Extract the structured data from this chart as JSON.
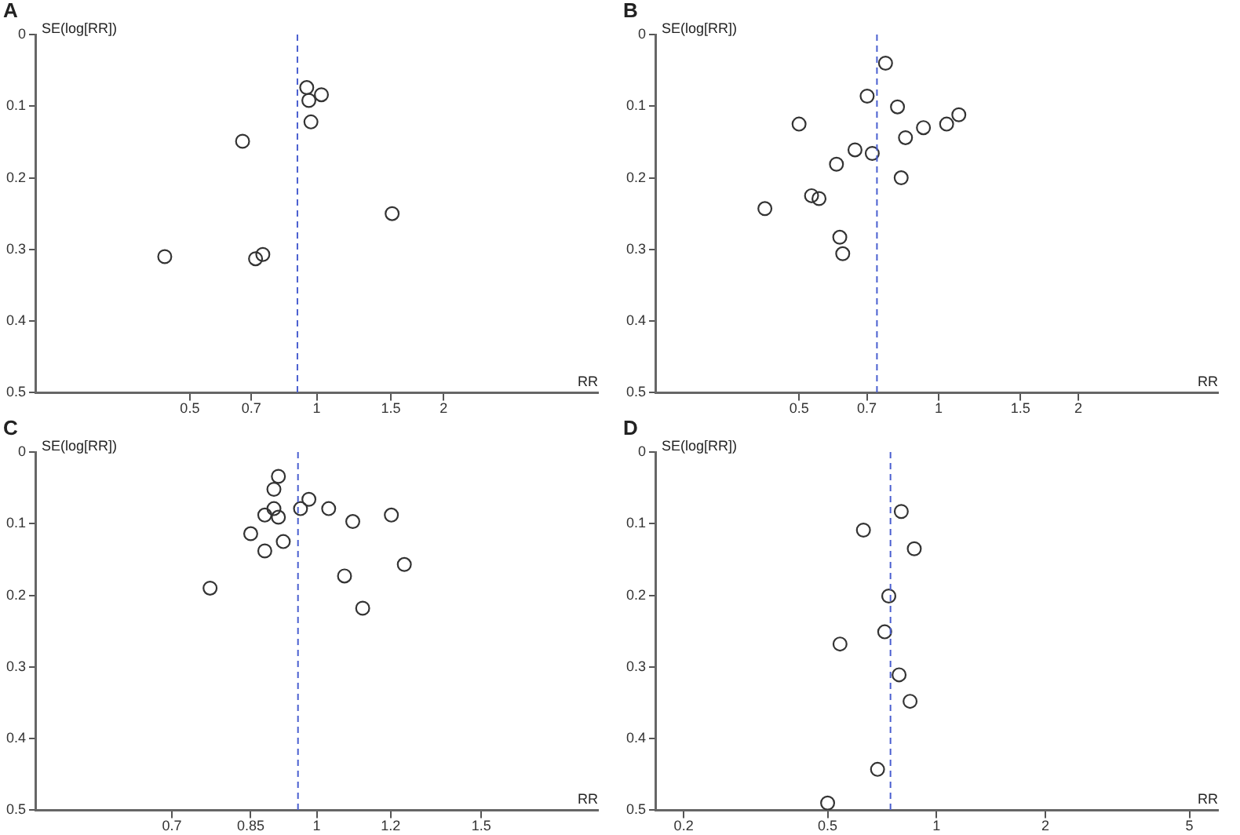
{
  "chart_data": [
    {
      "type": "scatter",
      "title": "A",
      "xlabel": "RR",
      "ylabel": "SE(log[RR])",
      "log": "x",
      "marker": "circle",
      "legend": false,
      "xlim": [
        0.215,
        4.65
      ],
      "xticks": [
        0.5,
        0.7,
        1,
        1.5,
        2
      ],
      "ylim": [
        0.5,
        0
      ],
      "yticks": [
        0,
        0.1,
        0.2,
        0.3,
        0.4,
        0.5
      ],
      "series": [
        {
          "color": "#333333",
          "x": [
            0.947,
            1.026,
            0.958,
            0.969,
            0.667,
            1.51,
            0.436,
            0.716,
            0.745
          ],
          "values": [
            0.074,
            0.084,
            0.092,
            0.122,
            0.149,
            0.25,
            0.31,
            0.313,
            0.307
          ]
        }
      ],
      "ref_lines": [
        {
          "axis": "x",
          "value": 0.9,
          "color": "#4a5fd0",
          "line_style": "dashed"
        }
      ]
    },
    {
      "type": "scatter",
      "title": "B",
      "xlabel": "RR",
      "ylabel": "SE(log[RR])",
      "log": "x",
      "marker": "circle",
      "legend": false,
      "xlim": [
        0.245,
        4.0
      ],
      "xticks": [
        0.5,
        0.7,
        1,
        1.5,
        2
      ],
      "ylim": [
        0.5,
        0
      ],
      "yticks": [
        0,
        0.1,
        0.2,
        0.3,
        0.4,
        0.5
      ],
      "series": [
        {
          "color": "#333333",
          "x": [
            0.768,
            0.701,
            0.815,
            0.5,
            1.105,
            1.04,
            0.927,
            0.848,
            0.66,
            0.719,
            0.602,
            0.83,
            0.532,
            0.552,
            0.422,
            0.612,
            0.621
          ],
          "values": [
            0.04,
            0.086,
            0.101,
            0.125,
            0.112,
            0.125,
            0.13,
            0.144,
            0.161,
            0.166,
            0.181,
            0.2,
            0.225,
            0.229,
            0.243,
            0.283,
            0.306
          ]
        }
      ],
      "ref_lines": [
        {
          "axis": "x",
          "value": 0.736,
          "color": "#4a5fd0",
          "line_style": "dashed"
        }
      ]
    },
    {
      "type": "scatter",
      "title": "C",
      "xlabel": "RR",
      "ylabel": "SE(log[RR])",
      "log": "x",
      "marker": "circle",
      "legend": false,
      "xlim": [
        0.5,
        2
      ],
      "xticks": [
        0.7,
        0.85,
        1,
        1.2,
        1.5
      ],
      "ylim": [
        0.5,
        0
      ],
      "yticks": [
        0,
        0.1,
        0.2,
        0.3,
        0.4,
        0.5
      ],
      "series": [
        {
          "color": "#333333",
          "x": [
            0.91,
            0.9,
            0.981,
            0.9,
            0.961,
            1.03,
            0.88,
            0.91,
            1.202,
            1.093,
            0.85,
            0.921,
            0.88,
            1.241,
            1.071,
            0.769,
            1.12
          ],
          "values": [
            0.034,
            0.052,
            0.066,
            0.079,
            0.079,
            0.079,
            0.088,
            0.091,
            0.088,
            0.097,
            0.114,
            0.125,
            0.138,
            0.157,
            0.173,
            0.19,
            0.218
          ]
        }
      ],
      "ref_lines": [
        {
          "axis": "x",
          "value": 0.955,
          "color": "#4a5fd0",
          "line_style": "dashed"
        }
      ]
    },
    {
      "type": "scatter",
      "title": "D",
      "xlabel": "RR",
      "ylabel": "SE(log[RR])",
      "log": "x",
      "marker": "circle",
      "legend": false,
      "xlim": [
        0.167,
        6
      ],
      "xticks": [
        0.2,
        0.5,
        1,
        2,
        5
      ],
      "ylim": [
        0.5,
        0
      ],
      "yticks": [
        0,
        0.1,
        0.2,
        0.3,
        0.4,
        0.5
      ],
      "series": [
        {
          "color": "#333333",
          "x": [
            0.799,
            0.628,
            0.868,
            0.738,
            0.719,
            0.541,
            0.788,
            0.845,
            0.687,
            0.5
          ],
          "values": [
            0.083,
            0.109,
            0.135,
            0.201,
            0.251,
            0.268,
            0.311,
            0.348,
            0.443,
            0.49
          ]
        }
      ],
      "ref_lines": [
        {
          "axis": "x",
          "value": 0.746,
          "color": "#4a5fd0",
          "line_style": "dashed"
        }
      ]
    }
  ]
}
